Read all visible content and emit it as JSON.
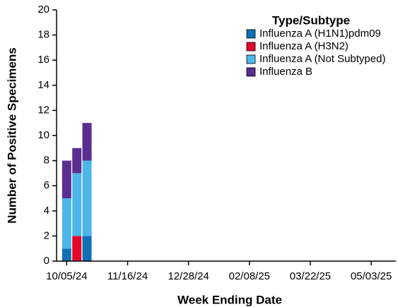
{
  "chart_data": {
    "type": "bar",
    "stacked": true,
    "x_label": "Week Ending Date",
    "y_label": "Number of Positive Specimens",
    "legend_title": "Type/Subtype",
    "x": [
      "10/05/24",
      "10/12/24",
      "10/19/24"
    ],
    "series": [
      {
        "name": "Influenza A (H1N1)pdm09",
        "color": "#0f6fb4",
        "values": [
          1,
          0,
          2
        ]
      },
      {
        "name": "Influenza A (H3N2)",
        "color": "#e3082b",
        "values": [
          0,
          2,
          0
        ]
      },
      {
        "name": "Influenza A (Not Subtyped)",
        "color": "#4db6e8",
        "values": [
          4,
          5,
          6
        ]
      },
      {
        "name": "Influenza B",
        "color": "#5a2d91",
        "values": [
          3,
          2,
          3
        ]
      }
    ],
    "xlim": [
      "09/28/24",
      "05/20/25"
    ],
    "xticks": [
      "10/05/24",
      "11/16/24",
      "12/28/24",
      "02/08/25",
      "03/22/25",
      "05/03/25"
    ],
    "ylim": [
      0,
      20
    ],
    "yticks": [
      0,
      2,
      4,
      6,
      8,
      10,
      12,
      14,
      16,
      18,
      20
    ]
  }
}
